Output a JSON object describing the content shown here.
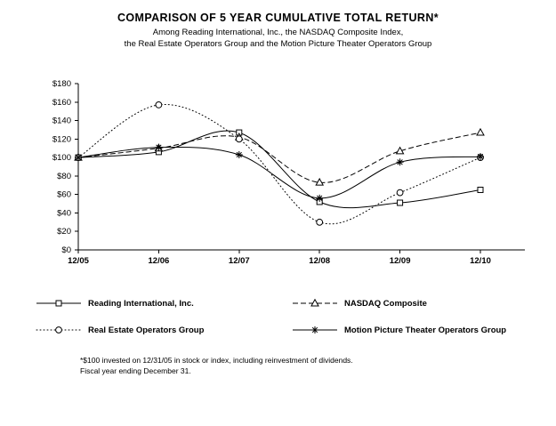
{
  "title": "COMPARISON OF 5 YEAR CUMULATIVE TOTAL RETURN*",
  "subtitle_line1": "Among Reading International, Inc., the NASDAQ Composite Index,",
  "subtitle_line2": "the Real Estate Operators Group and the Motion Picture Theater Operators Group",
  "footnote_line1": "*$100 invested on 12/31/05 in stock or index, including reinvestment of dividends.",
  "footnote_line2": "Fiscal year ending December 31.",
  "colors": {
    "line": "#000000",
    "background": "#ffffff"
  },
  "chart_data": {
    "type": "line",
    "x": [
      "12/05",
      "12/06",
      "12/07",
      "12/08",
      "12/09",
      "12/10"
    ],
    "xlabel": "",
    "ylabel": "",
    "ylim": [
      0,
      180
    ],
    "ytick_step": 20,
    "ytick_labels": [
      "$0",
      "$20",
      "$40",
      "$60",
      "$80",
      "$100",
      "$120",
      "$140",
      "$160",
      "$180"
    ],
    "grid": false,
    "legend_position": "below-two-columns",
    "series": [
      {
        "name": "Reading International, Inc.",
        "line_style": "solid",
        "marker": "square",
        "values": [
          100,
          106,
          127,
          52,
          51,
          65
        ]
      },
      {
        "name": "NASDAQ Composite",
        "line_style": "dashed",
        "marker": "triangle",
        "values": [
          100,
          110,
          122,
          73,
          107,
          127
        ]
      },
      {
        "name": "Real Estate Operators Group",
        "line_style": "dotted",
        "marker": "circle",
        "values": [
          100,
          157,
          120,
          30,
          62,
          100
        ]
      },
      {
        "name": "Motion Picture Theater Operators Group",
        "line_style": "solid",
        "marker": "star",
        "values": [
          100,
          111,
          103,
          56,
          95,
          101
        ]
      }
    ]
  }
}
